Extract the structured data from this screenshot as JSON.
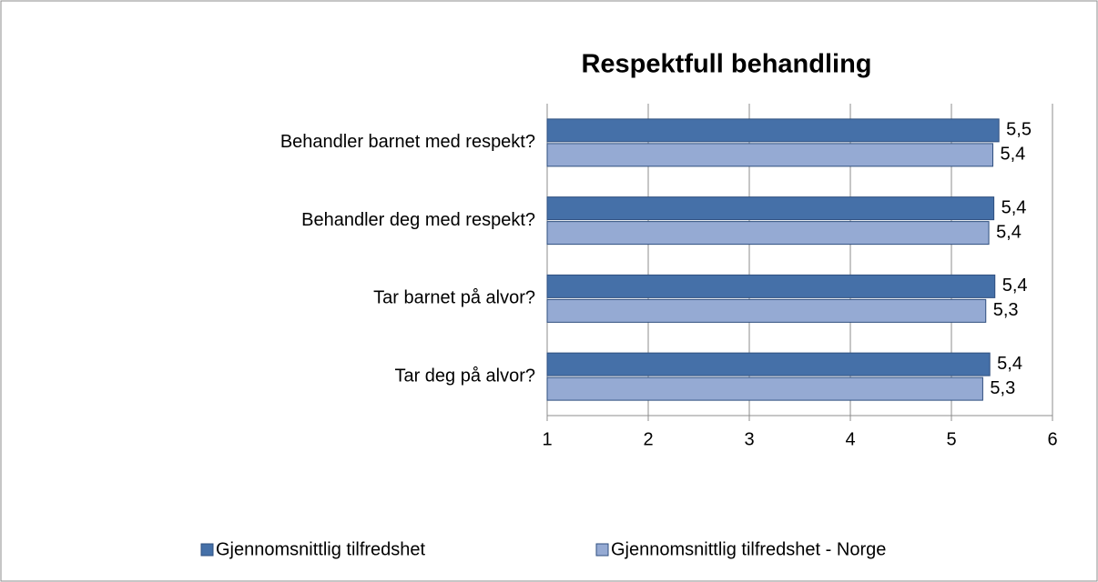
{
  "chart_data": {
    "type": "bar",
    "orientation": "horizontal",
    "title": "Respektfull behandling",
    "categories": [
      "Behandler barnet med respekt?",
      "Behandler deg med respekt?",
      "Tar barnet på alvor?",
      "Tar deg på alvor?"
    ],
    "series": [
      {
        "name": "Gjennomsnittlig tilfredshet",
        "color": "#4570a8",
        "values": [
          5.47,
          5.42,
          5.43,
          5.38
        ],
        "value_labels": [
          "5,5",
          "5,4",
          "5,4",
          "5,4"
        ]
      },
      {
        "name": "Gjennomsnittlig tilfredshet - Norge",
        "color": "#95aad3",
        "values": [
          5.41,
          5.37,
          5.34,
          5.31
        ],
        "value_labels": [
          "5,4",
          "5,4",
          "5,3",
          "5,3"
        ]
      }
    ],
    "xlim": [
      1,
      6
    ],
    "xticks": [
      1,
      2,
      3,
      4,
      5,
      6
    ],
    "grid": true,
    "legend": "bottom"
  }
}
